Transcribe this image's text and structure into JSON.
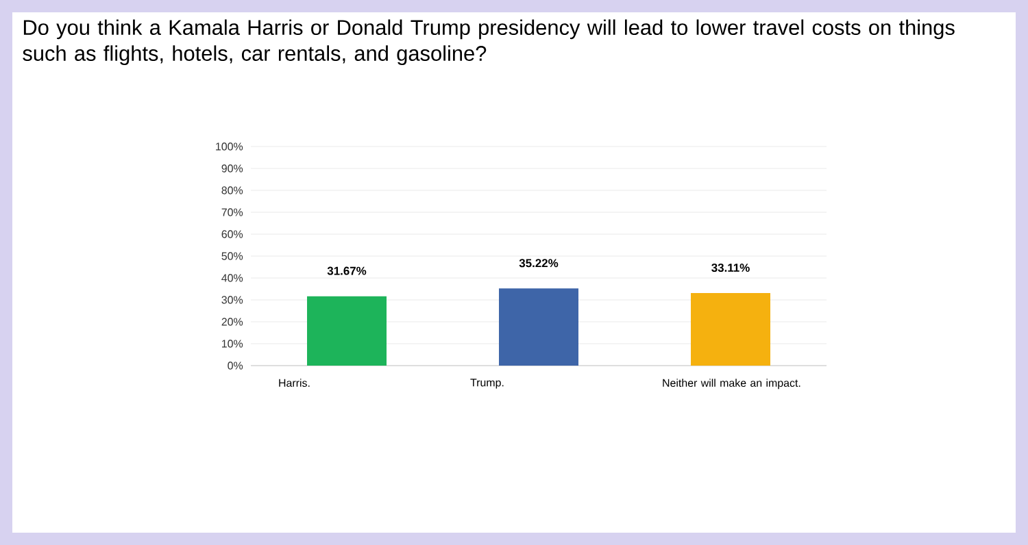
{
  "chart_data": {
    "type": "bar",
    "title": "Do you think a Kamala Harris or Donald Trump presidency will lead to lower travel costs on things such as flights, hotels, car rentals, and gasoline?",
    "categories": [
      "Harris.",
      "Trump.",
      "Neither will make an impact."
    ],
    "values": [
      31.67,
      35.22,
      33.11
    ],
    "colors": [
      "#1db45a",
      "#3e65a8",
      "#f5b10f"
    ],
    "value_labels": [
      "31.67%",
      "35.22%",
      "33.11%"
    ],
    "ylim": [
      0,
      100
    ],
    "yticks": [
      {
        "value": 0,
        "label": "0%"
      },
      {
        "value": 10,
        "label": "10%"
      },
      {
        "value": 20,
        "label": "20%"
      },
      {
        "value": 30,
        "label": "30%"
      },
      {
        "value": 40,
        "label": "40%"
      },
      {
        "value": 50,
        "label": "50%"
      },
      {
        "value": 60,
        "label": "60%"
      },
      {
        "value": 70,
        "label": "70%"
      },
      {
        "value": 80,
        "label": "80%"
      },
      {
        "value": 90,
        "label": "90%"
      },
      {
        "value": 100,
        "label": "100%"
      }
    ],
    "grid": "y"
  }
}
